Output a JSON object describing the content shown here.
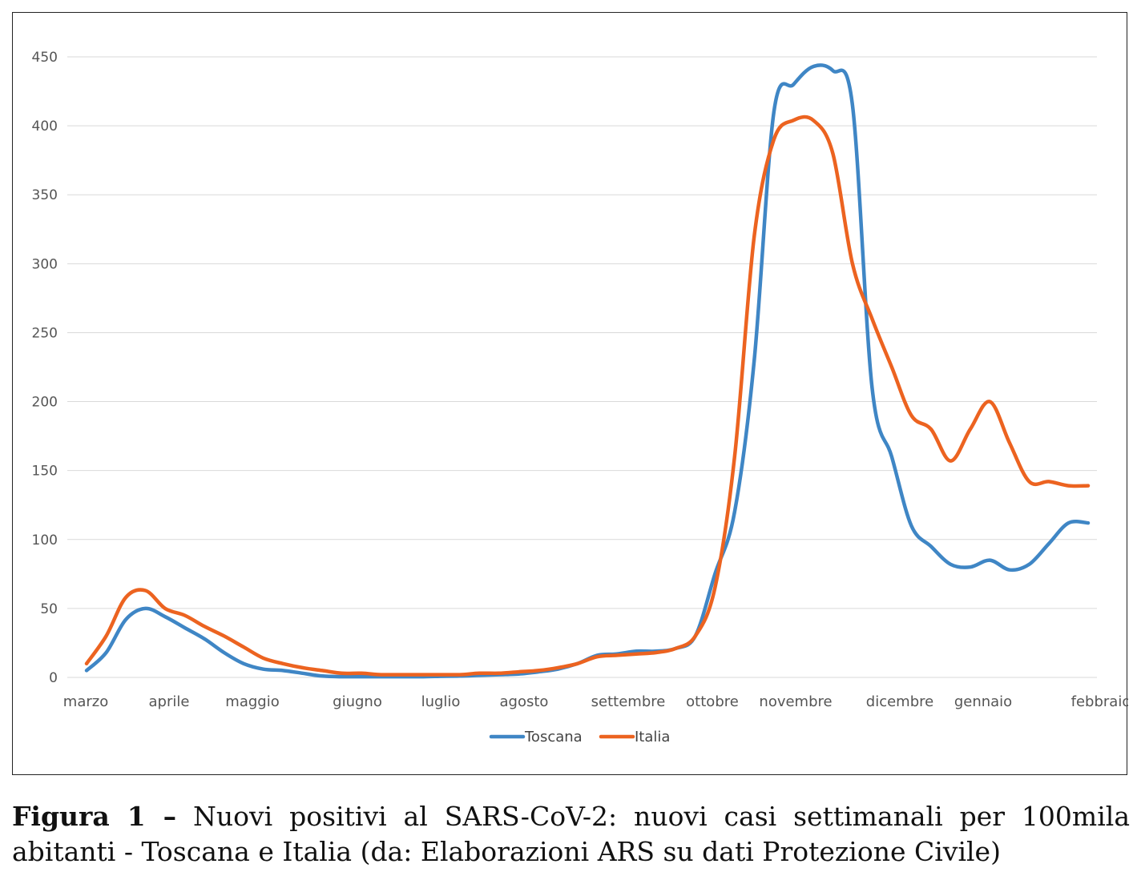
{
  "chart_data": {
    "type": "line",
    "title": "",
    "xlabel": "",
    "ylabel": "",
    "ylim": [
      0,
      450
    ],
    "yticks": [
      0,
      50,
      100,
      150,
      200,
      250,
      300,
      350,
      400,
      450
    ],
    "grid": true,
    "legend_position": "bottom",
    "month_labels": [
      "marzo",
      "aprile",
      "maggio",
      "giugno",
      "luglio",
      "agosto",
      "settembre",
      "ottobre",
      "novembre",
      "dicembre",
      "gennaio",
      "febbraio"
    ],
    "x": [
      "mar-1",
      "mar-2",
      "mar-3",
      "mar-4",
      "apr-1",
      "apr-2",
      "apr-3",
      "apr-4",
      "apr-5",
      "mag-1",
      "mag-2",
      "mag-3",
      "mag-4",
      "mag-5",
      "giu-1",
      "giu-2",
      "giu-3",
      "giu-4",
      "lug-1",
      "lug-2",
      "lug-3",
      "lug-4",
      "lug-5",
      "ago-1",
      "ago-2",
      "ago-3",
      "ago-4",
      "set-1",
      "set-2",
      "set-3",
      "set-4",
      "set-5",
      "ott-1",
      "ott-2",
      "ott-3",
      "ott-4",
      "nov-1",
      "nov-2",
      "nov-3",
      "nov-4",
      "nov-5",
      "dic-1",
      "dic-2",
      "dic-3",
      "dic-4",
      "gen-1",
      "gen-2",
      "gen-3",
      "gen-4",
      "gen-5",
      "feb-1",
      "feb-2"
    ],
    "series": [
      {
        "name": "Toscana",
        "color": "#3f86c5",
        "values": [
          5,
          18,
          42,
          50,
          44,
          36,
          28,
          18,
          10,
          6,
          5,
          3,
          1,
          0.5,
          0.5,
          0.5,
          0.5,
          0.5,
          0.8,
          1,
          1.5,
          2,
          2.5,
          4,
          6,
          10,
          16,
          17,
          19,
          19,
          21,
          30,
          75,
          120,
          230,
          410,
          430,
          443,
          440,
          415,
          210,
          160,
          110,
          95,
          82,
          80,
          85,
          78,
          82,
          97,
          112,
          112
        ]
      },
      {
        "name": "Italia",
        "color": "#ec6320",
        "values": [
          10,
          30,
          58,
          63,
          50,
          45,
          37,
          30,
          22,
          14,
          10,
          7,
          5,
          3,
          3,
          2,
          2,
          2,
          2,
          2,
          3,
          3,
          4,
          5,
          7,
          10,
          15,
          16,
          17,
          18,
          21,
          30,
          65,
          160,
          320,
          390,
          404,
          404,
          380,
          300,
          260,
          225,
          190,
          180,
          157,
          180,
          200,
          170,
          142,
          142,
          139,
          139
        ]
      }
    ]
  },
  "caption": {
    "label": "Figura 1 –",
    "text": " Nuovi positivi al SARS-CoV-2: nuovi casi settimanali per 100mila abitanti - Toscana e Italia (da: Elaborazioni ARS su dati Protezione Civile)"
  }
}
